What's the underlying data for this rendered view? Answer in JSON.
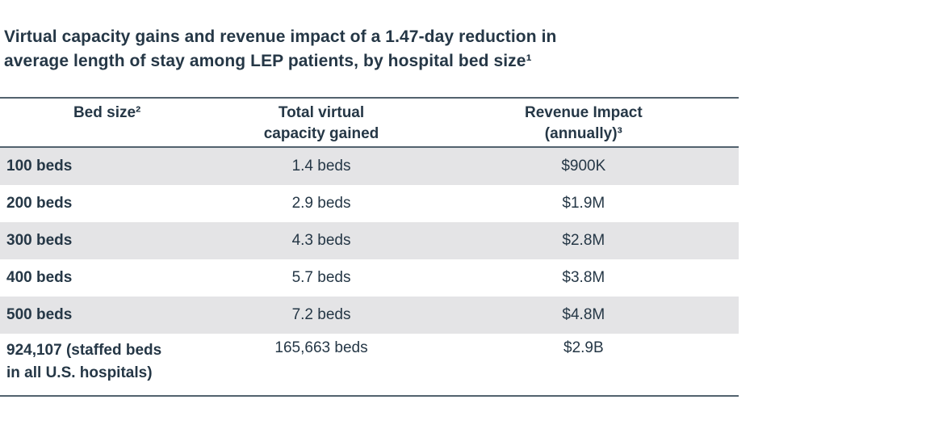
{
  "title": {
    "line1": "Virtual capacity gains and revenue impact of a 1.47-day reduction in",
    "line2": "average length of stay among LEP patients, by hospital bed size¹"
  },
  "table": {
    "columns": [
      {
        "label": "Bed size²"
      },
      {
        "label": "Total virtual\ncapacity gained"
      },
      {
        "label": "Revenue Impact\n(annually)³"
      }
    ],
    "rows": [
      {
        "bed_size": "100 beds",
        "capacity": "1.4 beds",
        "revenue": "$900K"
      },
      {
        "bed_size": "200 beds",
        "capacity": "2.9 beds",
        "revenue": "$1.9M"
      },
      {
        "bed_size": "300 beds",
        "capacity": "4.3 beds",
        "revenue": "$2.8M"
      },
      {
        "bed_size": "400 beds",
        "capacity": "5.7 beds",
        "revenue": "$3.8M"
      },
      {
        "bed_size": "500 beds",
        "capacity": "7.2 beds",
        "revenue": "$4.8M"
      },
      {
        "bed_size": "924,107 (staffed beds\nin all U.S. hospitals)",
        "capacity": "165,663 beds",
        "revenue": "$2.9B"
      }
    ]
  },
  "colors": {
    "text": "#253746",
    "border": "#52626e",
    "zebra": "#e4e4e6",
    "background": "#ffffff"
  },
  "chart_data": {
    "type": "table",
    "title": "Virtual capacity gains and revenue impact of a 1.47-day reduction in average length of stay among LEP patients, by hospital bed size¹",
    "columns": [
      "Bed size²",
      "Total virtual capacity gained",
      "Revenue Impact (annually)³"
    ],
    "rows": [
      [
        "100 beds",
        "1.4 beds",
        "$900K"
      ],
      [
        "200 beds",
        "2.9 beds",
        "$1.9M"
      ],
      [
        "300 beds",
        "4.3 beds",
        "$2.8M"
      ],
      [
        "400 beds",
        "5.7 beds",
        "$3.8M"
      ],
      [
        "500 beds",
        "7.2 beds",
        "$4.8M"
      ],
      [
        "924,107 (staffed beds in all U.S. hospitals)",
        "165,663 beds",
        "$2.9B"
      ]
    ],
    "numeric_values": {
      "bed_size": [
        100,
        200,
        300,
        400,
        500,
        924107
      ],
      "virtual_capacity_gained_beds": [
        1.4,
        2.9,
        4.3,
        5.7,
        7.2,
        165663
      ],
      "revenue_impact_annual_usd": [
        900000,
        1900000,
        2800000,
        3800000,
        4800000,
        2900000000
      ]
    },
    "layout": {
      "zebra_striping": true,
      "striped_rows": [
        1,
        3,
        5
      ],
      "grid": "horizontal rules at table top, below header, and table bottom"
    }
  }
}
